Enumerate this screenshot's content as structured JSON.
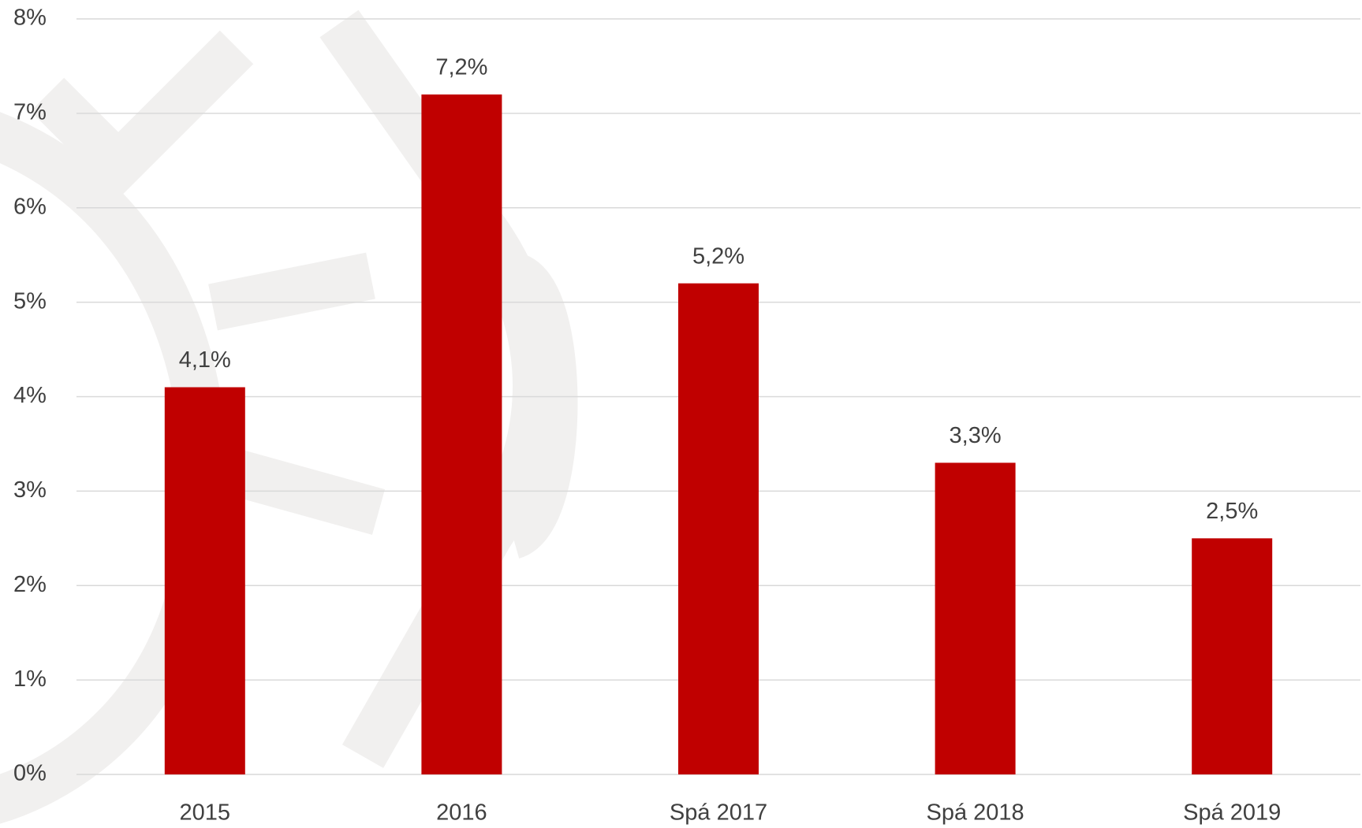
{
  "chart_data": {
    "type": "bar",
    "categories": [
      "2015",
      "2016",
      "Spá 2017",
      "Spá 2018",
      "Spá 2019"
    ],
    "values": [
      4.1,
      7.2,
      5.2,
      3.3,
      2.5
    ],
    "value_labels": [
      "4,1%",
      "7,2%",
      "5,2%",
      "3,3%",
      "2,5%"
    ],
    "color": "#c00000",
    "ylim": [
      0,
      8
    ],
    "yticks": [
      {
        "value": 0,
        "label": "0%"
      },
      {
        "value": 1,
        "label": "1%"
      },
      {
        "value": 2,
        "label": "2%"
      },
      {
        "value": 3,
        "label": "3%"
      },
      {
        "value": 4,
        "label": "4%"
      },
      {
        "value": 5,
        "label": "5%"
      },
      {
        "value": 6,
        "label": "6%"
      },
      {
        "value": 7,
        "label": "7%"
      },
      {
        "value": 8,
        "label": "8%"
      }
    ],
    "grid": true
  }
}
